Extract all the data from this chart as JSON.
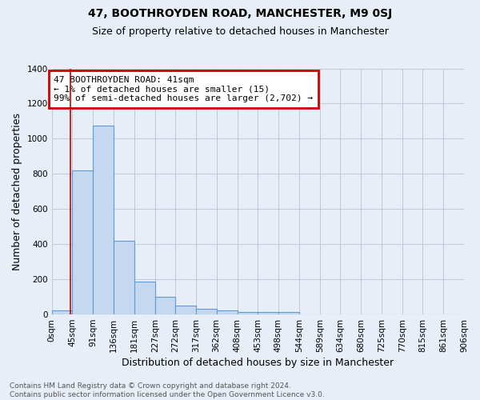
{
  "title": "47, BOOTHROYDEN ROAD, MANCHESTER, M9 0SJ",
  "subtitle": "Size of property relative to detached houses in Manchester",
  "xlabel": "Distribution of detached houses by size in Manchester",
  "ylabel": "Number of detached properties",
  "footer_line1": "Contains HM Land Registry data © Crown copyright and database right 2024.",
  "footer_line2": "Contains public sector information licensed under the Open Government Licence v3.0.",
  "annotation_line1": "47 BOOTHROYDEN ROAD: 41sqm",
  "annotation_line2": "← 1% of detached houses are smaller (15)",
  "annotation_line3": "99% of semi-detached houses are larger (2,702) →",
  "bar_edges": [
    0,
    45,
    91,
    136,
    181,
    227,
    272,
    317,
    362,
    408,
    453,
    498,
    544,
    589,
    634,
    680,
    725,
    770,
    815,
    861,
    906
  ],
  "bar_heights": [
    25,
    820,
    1075,
    420,
    185,
    100,
    52,
    33,
    22,
    14,
    12,
    12,
    0,
    0,
    0,
    0,
    0,
    0,
    0,
    0
  ],
  "bar_color": "#c5d8f0",
  "bar_edge_color": "#5b9bd5",
  "bar_edge_width": 0.8,
  "grid_color": "#c0c8d8",
  "background_color": "#e8eef7",
  "redline_x": 41,
  "ylim": [
    0,
    1400
  ],
  "yticks": [
    0,
    200,
    400,
    600,
    800,
    1000,
    1200,
    1400
  ],
  "xtick_labels": [
    "0sqm",
    "45sqm",
    "91sqm",
    "136sqm",
    "181sqm",
    "227sqm",
    "272sqm",
    "317sqm",
    "362sqm",
    "408sqm",
    "453sqm",
    "498sqm",
    "544sqm",
    "589sqm",
    "634sqm",
    "680sqm",
    "725sqm",
    "770sqm",
    "815sqm",
    "861sqm",
    "906sqm"
  ],
  "annotation_box_color": "#cc0000",
  "title_fontsize": 10,
  "subtitle_fontsize": 9,
  "axis_label_fontsize": 9,
  "tick_fontsize": 7.5,
  "annotation_fontsize": 8,
  "footer_fontsize": 6.5
}
